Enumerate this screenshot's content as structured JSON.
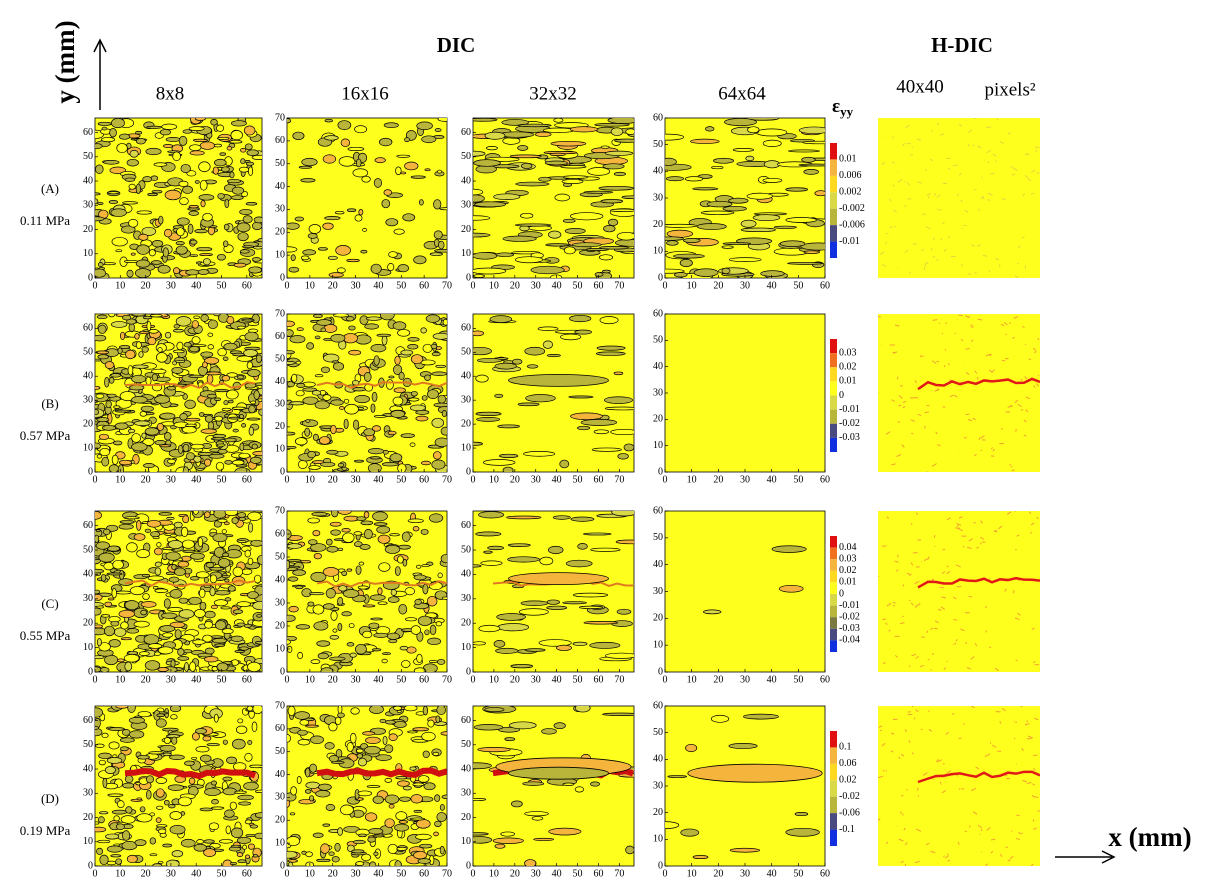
{
  "header": {
    "dic": "DIC",
    "hdic": "H-DIC",
    "unit": "pixels²"
  },
  "axes": {
    "y_label": "y (mm)",
    "x_label": "x (mm)"
  },
  "colorbar_title": {
    "symbol": "ε",
    "subscript": "yy"
  },
  "columns": [
    {
      "label": "8x8",
      "xticks": [
        0,
        10,
        20,
        30,
        40,
        50,
        60
      ],
      "yticks": [
        0,
        10,
        20,
        30,
        40,
        50,
        60
      ]
    },
    {
      "label": "16x16",
      "xticks": [
        0,
        10,
        20,
        30,
        40,
        50,
        60,
        70
      ],
      "yticks": [
        0,
        10,
        20,
        30,
        40,
        50,
        60,
        70
      ]
    },
    {
      "label": "32x32",
      "xticks": [
        0,
        10,
        20,
        30,
        40,
        50,
        60,
        70
      ],
      "yticks": [
        0,
        10,
        20,
        30,
        40,
        50,
        60
      ]
    },
    {
      "label": "64x64",
      "xticks": [
        0,
        10,
        20,
        30,
        40,
        50,
        60
      ],
      "yticks": [
        0,
        10,
        20,
        30,
        40,
        50,
        60
      ]
    },
    {
      "label": "40x40"
    }
  ],
  "rows": [
    {
      "label": "(A)",
      "stress": "0.11 MPa",
      "colorbar": [
        0.01,
        0.006,
        0.002,
        -0.002,
        -0.006,
        -0.01
      ]
    },
    {
      "label": "(B)",
      "stress": "0.57 MPa",
      "colorbar": [
        0.03,
        0.02,
        0.01,
        0,
        -0.01,
        -0.02,
        -0.03
      ]
    },
    {
      "label": "(C)",
      "stress": "0.55 MPa",
      "colorbar": [
        0.04,
        0.03,
        0.02,
        0.01,
        0,
        -0.01,
        -0.02,
        -0.03,
        -0.04
      ]
    },
    {
      "label": "(D)",
      "stress": "0.19 MPa",
      "colorbar": [
        0.1,
        0.06,
        0.02,
        -0.02,
        -0.06,
        -0.1
      ]
    }
  ]
}
